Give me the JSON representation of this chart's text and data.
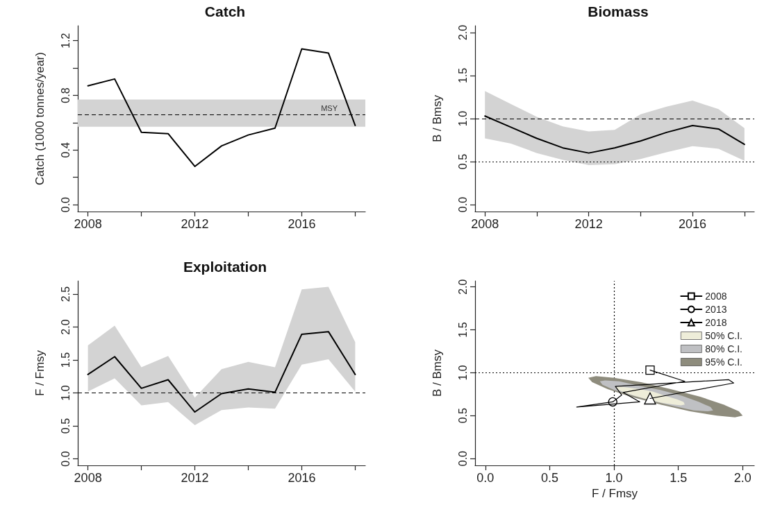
{
  "chart_data": [
    {
      "type": "line",
      "title": "Catch",
      "ylabel": "Catch (1000 tonnes/year)",
      "x": [
        2008,
        2009,
        2010,
        2011,
        2012,
        2013,
        2014,
        2015,
        2016,
        2017,
        2018
      ],
      "series": [
        {
          "color": "#000000",
          "values": [
            0.87,
            0.92,
            0.53,
            0.52,
            0.28,
            0.43,
            0.51,
            0.56,
            1.14,
            1.11,
            0.58
          ]
        }
      ],
      "xlim": [
        2007.62,
        2018.38
      ],
      "xticks": [
        2008,
        {
          "value": 2010,
          "label": null
        },
        2012,
        {
          "value": 2014,
          "label": null
        },
        2016,
        {
          "value": 2018,
          "label": null
        }
      ],
      "ylim": [
        -0.05,
        1.31
      ],
      "yticks": [
        {
          "value": 0,
          "label": "0.0"
        },
        {
          "value": 0.2,
          "label": null
        },
        {
          "value": 0.4,
          "label": "0.4"
        },
        {
          "value": 0.6,
          "label": null
        },
        {
          "value": 0.8,
          "label": "0.8"
        },
        {
          "value": 1.0,
          "label": null
        },
        {
          "value": 1.2,
          "label": "1.2"
        }
      ],
      "ref_lines": [
        {
          "axis": "y",
          "value": 0.66,
          "label": "MSY",
          "line_style": "dashed",
          "color": "#000000"
        }
      ],
      "bands": [
        {
          "axis": "y",
          "from": 0.57,
          "to": 0.77,
          "color": "#d3d3d3"
        }
      ]
    },
    {
      "type": "line",
      "title": "Biomass",
      "ylabel": "B / Bmsy",
      "x": [
        2008,
        2009,
        2010,
        2011,
        2012,
        2013,
        2014,
        2015,
        2016,
        2017,
        2018
      ],
      "series": [
        {
          "color": "#000000",
          "values": [
            1.03,
            0.9,
            0.77,
            0.66,
            0.6,
            0.66,
            0.74,
            0.84,
            0.92,
            0.88,
            0.7
          ],
          "lower": [
            0.77,
            0.71,
            0.6,
            0.52,
            0.46,
            0.47,
            0.53,
            0.61,
            0.68,
            0.65,
            0.51
          ],
          "upper": [
            1.32,
            1.17,
            1.02,
            0.91,
            0.85,
            0.87,
            1.05,
            1.14,
            1.21,
            1.11,
            0.89
          ]
        }
      ],
      "xlim": [
        2007.62,
        2018.38
      ],
      "xticks": [
        2008,
        {
          "value": 2010,
          "label": null
        },
        2012,
        {
          "value": 2014,
          "label": null
        },
        2016,
        {
          "value": 2018,
          "label": null
        }
      ],
      "ylim": [
        -0.08,
        2.08
      ],
      "yticks": [
        {
          "value": 0,
          "label": "0.0"
        },
        0.5,
        {
          "value": 1,
          "label": "1.0"
        },
        1.5,
        {
          "value": 2,
          "label": "2.0"
        }
      ],
      "ref_lines": [
        {
          "axis": "y",
          "value": 1,
          "line_style": "dashed",
          "color": "#000000"
        },
        {
          "axis": "y",
          "value": 0.5,
          "line_style": "dotted",
          "color": "#000000"
        }
      ]
    },
    {
      "type": "line",
      "title": "Exploitation",
      "ylabel": "F / Fmsy",
      "x": [
        2008,
        2009,
        2010,
        2011,
        2012,
        2013,
        2014,
        2015,
        2016,
        2017,
        2018
      ],
      "series": [
        {
          "color": "#000000",
          "values": [
            1.28,
            1.55,
            1.07,
            1.2,
            0.71,
            0.99,
            1.06,
            1.01,
            1.89,
            1.93,
            1.28
          ],
          "lower": [
            1.02,
            1.22,
            0.81,
            0.86,
            0.51,
            0.74,
            0.78,
            0.76,
            1.43,
            1.51,
            1.02
          ],
          "upper": [
            1.72,
            2.02,
            1.39,
            1.56,
            0.93,
            1.36,
            1.47,
            1.39,
            2.57,
            2.61,
            1.77
          ]
        }
      ],
      "xlim": [
        2007.62,
        2018.38
      ],
      "xticks": [
        2008,
        {
          "value": 2010,
          "label": null
        },
        2012,
        {
          "value": 2014,
          "label": null
        },
        2016,
        {
          "value": 2018,
          "label": null
        }
      ],
      "ylim": [
        -0.1,
        2.7
      ],
      "yticks": [
        {
          "value": 0,
          "label": "0.0"
        },
        0.5,
        {
          "value": 1,
          "label": "1.0"
        },
        1.5,
        {
          "value": 2,
          "label": "2.0"
        },
        2.5
      ],
      "ref_lines": [
        {
          "axis": "y",
          "value": 1,
          "line_style": "dashed",
          "color": "#000000"
        }
      ]
    },
    {
      "type": "line",
      "xlabel": "F / Fmsy",
      "ylabel": "B / Bmsy",
      "legend": "top right",
      "series": [
        {
          "name": "2008",
          "color": "#000000",
          "marker": "square",
          "x": [
            1.28
          ],
          "values": [
            1.03
          ]
        },
        {
          "name": "2013",
          "color": "#000000",
          "marker": "circle",
          "x": [
            0.99
          ],
          "values": [
            0.66
          ]
        },
        {
          "name": "2018",
          "color": "#000000",
          "marker": "triangle",
          "x": [
            1.28
          ],
          "values": [
            0.7
          ]
        },
        {
          "name": "50% C.I.",
          "type": "area",
          "color": "#eeedd9",
          "x": [
            1.55,
            1.54,
            1.49,
            1.4,
            1.3,
            1.2,
            1.1,
            1.04,
            1.01,
            1.02,
            1.08,
            1.16,
            1.26,
            1.37,
            1.46,
            1.52
          ],
          "values": [
            0.63,
            0.66,
            0.69,
            0.73,
            0.78,
            0.81,
            0.83,
            0.84,
            0.83,
            0.81,
            0.77,
            0.73,
            0.69,
            0.65,
            0.63,
            0.62
          ]
        },
        {
          "name": "80% C.I.",
          "type": "area",
          "color": "#bfc0c3",
          "x": [
            1.77,
            1.75,
            1.66,
            1.53,
            1.36,
            1.19,
            1.04,
            0.93,
            0.89,
            0.91,
            1.0,
            1.13,
            1.3,
            1.47,
            1.62,
            1.73
          ],
          "values": [
            0.56,
            0.6,
            0.66,
            0.73,
            0.8,
            0.85,
            0.9,
            0.91,
            0.9,
            0.86,
            0.8,
            0.74,
            0.67,
            0.61,
            0.56,
            0.55
          ]
        },
        {
          "name": "95% C.I.",
          "type": "area",
          "color": "#8e8c7d",
          "x": [
            2.0,
            1.97,
            1.85,
            1.67,
            1.44,
            1.21,
            1.0,
            0.86,
            0.8,
            0.83,
            0.95,
            1.13,
            1.36,
            1.59,
            1.8,
            1.94
          ],
          "values": [
            0.5,
            0.55,
            0.63,
            0.72,
            0.81,
            0.89,
            0.94,
            0.96,
            0.94,
            0.89,
            0.81,
            0.72,
            0.63,
            0.55,
            0.5,
            0.48
          ]
        },
        {
          "color": "#000000",
          "marker": "none",
          "x": [
            1.28,
            1.55,
            1.07,
            1.2,
            0.71,
            0.99,
            1.06,
            1.01,
            1.89,
            1.93,
            1.28
          ],
          "values": [
            1.03,
            0.9,
            0.77,
            0.66,
            0.6,
            0.66,
            0.74,
            0.84,
            0.92,
            0.88,
            0.7
          ]
        }
      ],
      "xlim": [
        -0.08,
        2.09
      ],
      "xticks": [
        {
          "value": 0,
          "label": "0.0"
        },
        0.5,
        {
          "value": 1,
          "label": "1.0"
        },
        1.5,
        {
          "value": 2,
          "label": "2.0"
        }
      ],
      "ylim": [
        -0.08,
        2.07
      ],
      "yticks": [
        {
          "value": 0,
          "label": "0.0"
        },
        0.5,
        {
          "value": 1,
          "label": "1.0"
        },
        1.5,
        {
          "value": 2,
          "label": "2.0"
        }
      ],
      "ref_lines": [
        {
          "axis": "x",
          "value": 1,
          "line_style": "dotted",
          "color": "#000000"
        },
        {
          "axis": "y",
          "value": 1,
          "line_style": "dotted",
          "color": "#000000"
        }
      ]
    }
  ]
}
